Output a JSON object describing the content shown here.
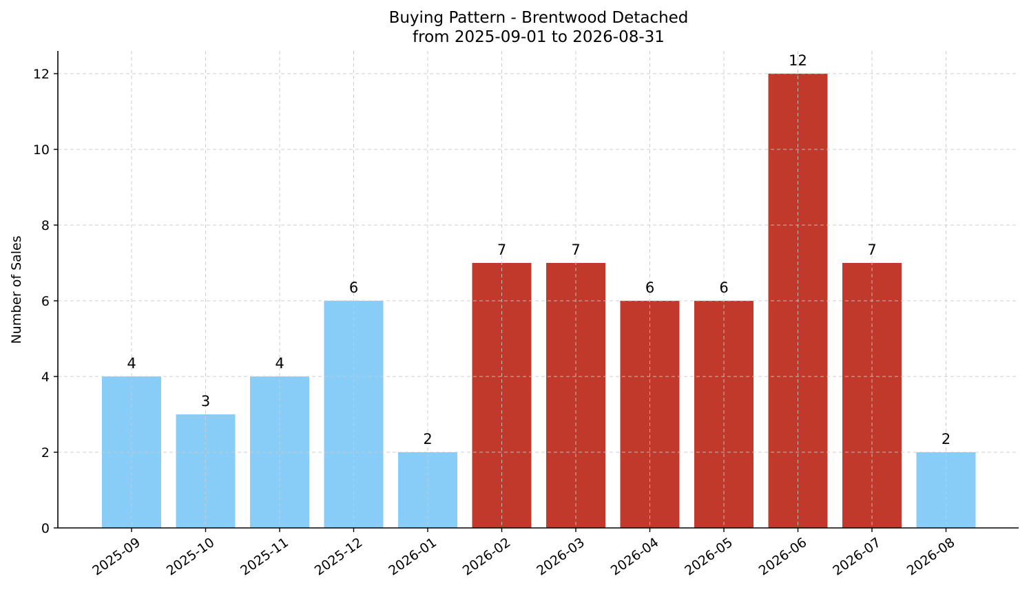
{
  "chart_data": {
    "type": "bar",
    "title": "Buying Pattern - Brentwood Detached",
    "subtitle": "from 2025-09-01 to 2026-08-31",
    "xlabel": "",
    "ylabel": "Number of Sales",
    "ylim": [
      0,
      12.6
    ],
    "yticks": [
      0,
      2,
      4,
      6,
      8,
      10,
      12
    ],
    "grid": true,
    "categories": [
      "2025-09",
      "2025-10",
      "2025-11",
      "2025-12",
      "2026-01",
      "2026-02",
      "2026-03",
      "2026-04",
      "2026-05",
      "2026-06",
      "2026-07",
      "2026-08"
    ],
    "values": [
      4,
      3,
      4,
      6,
      2,
      7,
      7,
      6,
      6,
      12,
      7,
      2
    ],
    "bar_colors": [
      "#87cdf8",
      "#87cdf8",
      "#87cdf8",
      "#87cdf8",
      "#87cdf8",
      "#c0392b",
      "#c0392b",
      "#c0392b",
      "#c0392b",
      "#c0392b",
      "#c0392b",
      "#87cdf8"
    ]
  }
}
